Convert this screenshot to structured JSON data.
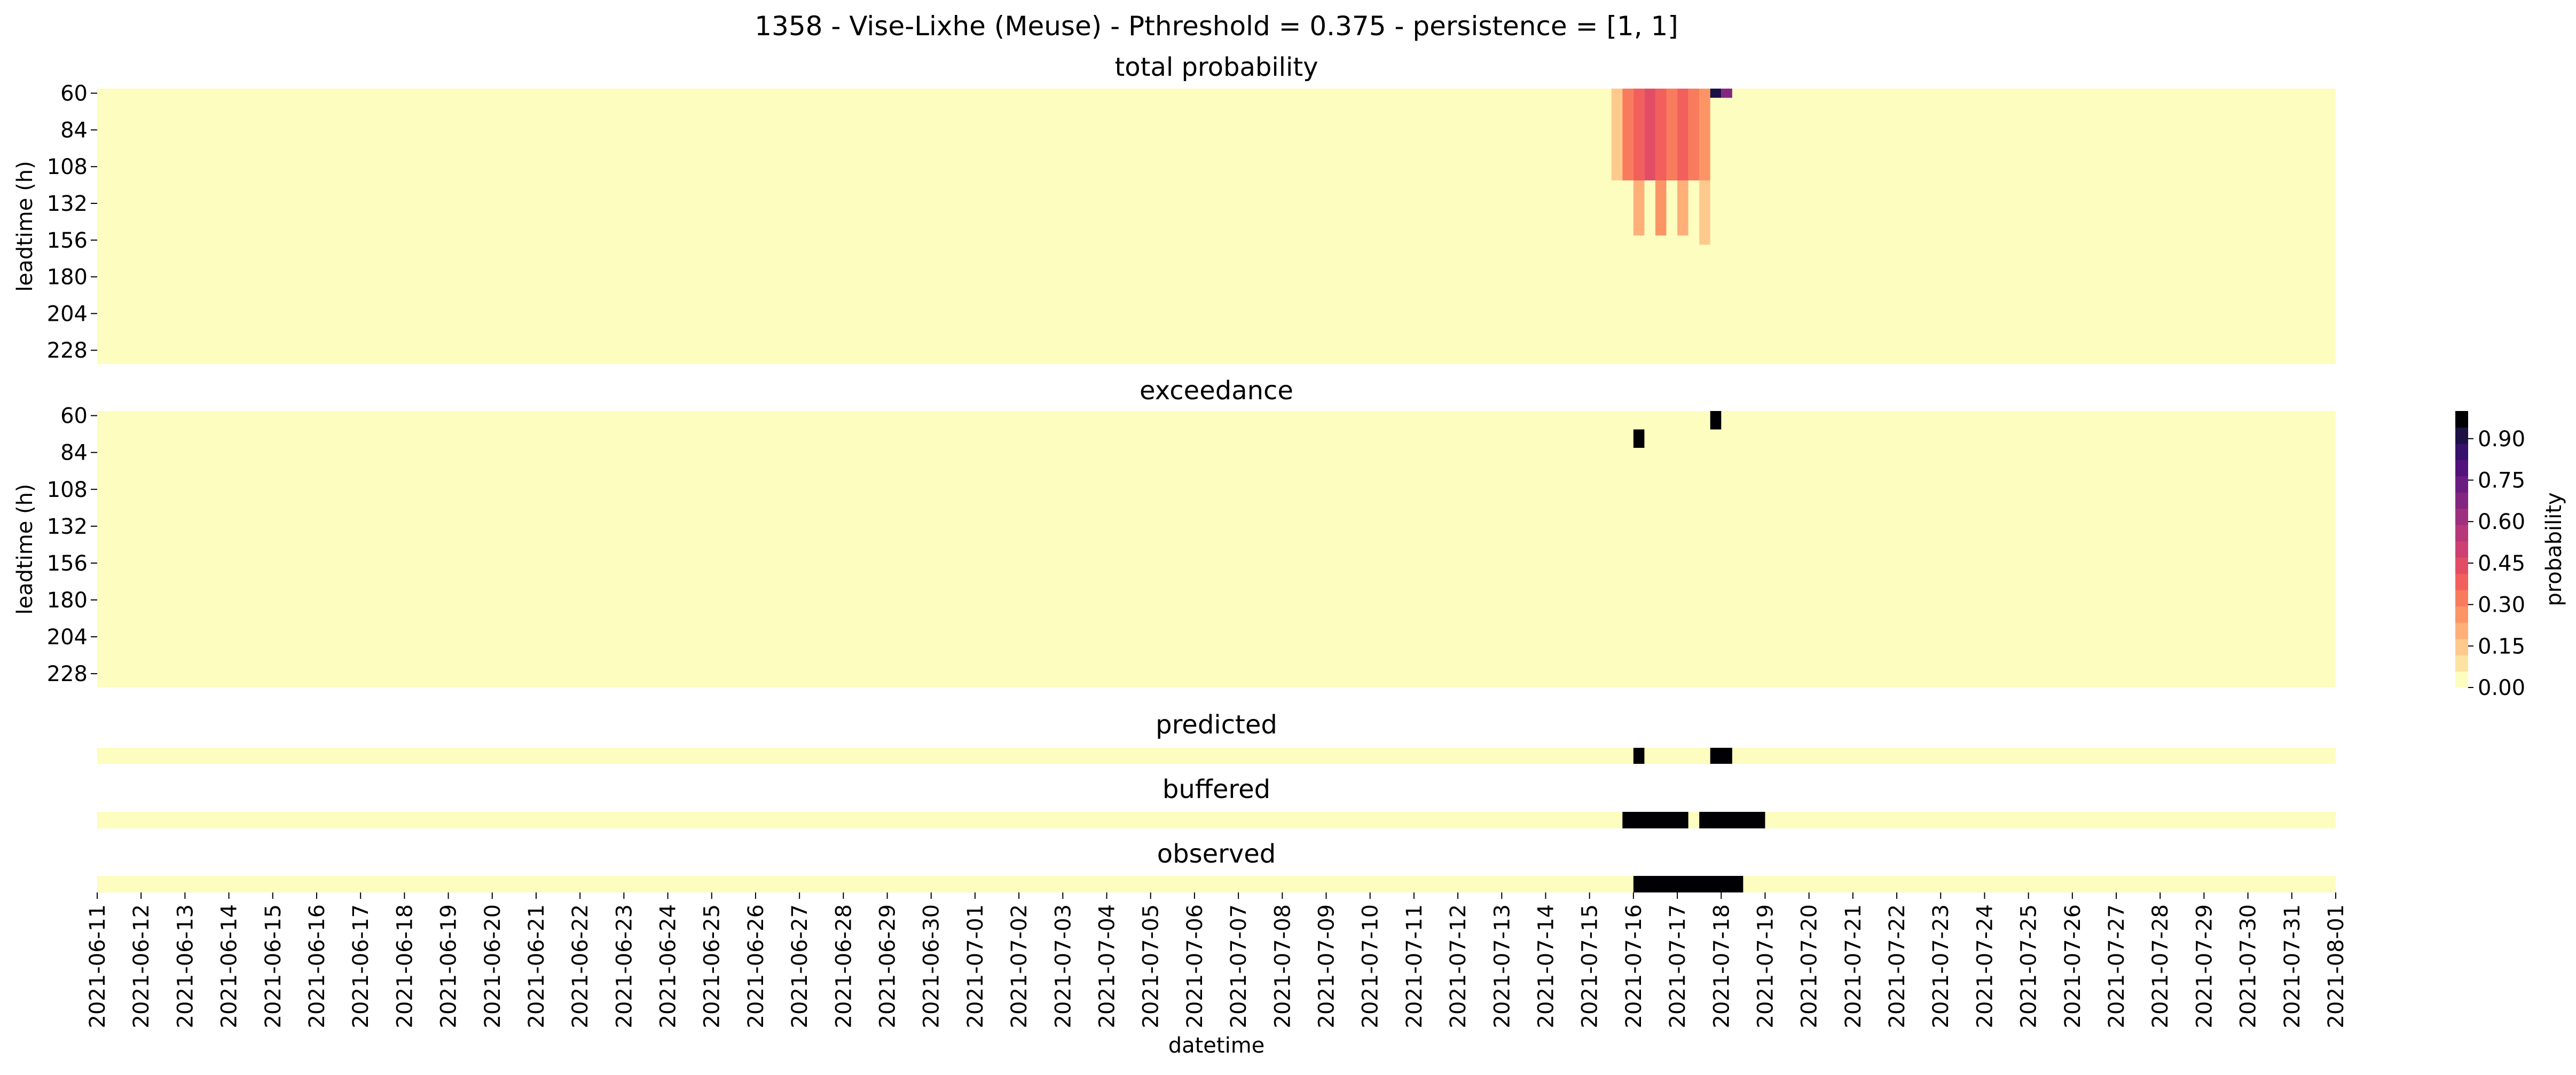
{
  "chart_data": {
    "type": "heatmap",
    "title": "1358 - Vise-Lixhe (Meuse) - Pthreshold = 0.375 - persistence = [1, 1]",
    "xlabel": "datetime",
    "date_start": "2021-06-11",
    "date_end": "2021-08-01",
    "xtick_labels": [
      "2021-06-11",
      "2021-06-12",
      "2021-06-13",
      "2021-06-14",
      "2021-06-15",
      "2021-06-16",
      "2021-06-17",
      "2021-06-18",
      "2021-06-19",
      "2021-06-20",
      "2021-06-21",
      "2021-06-22",
      "2021-06-23",
      "2021-06-24",
      "2021-06-25",
      "2021-06-26",
      "2021-06-27",
      "2021-06-28",
      "2021-06-29",
      "2021-06-30",
      "2021-07-01",
      "2021-07-02",
      "2021-07-03",
      "2021-07-04",
      "2021-07-05",
      "2021-07-06",
      "2021-07-07",
      "2021-07-08",
      "2021-07-09",
      "2021-07-10",
      "2021-07-11",
      "2021-07-12",
      "2021-07-13",
      "2021-07-14",
      "2021-07-15",
      "2021-07-16",
      "2021-07-17",
      "2021-07-18",
      "2021-07-19",
      "2021-07-20",
      "2021-07-21",
      "2021-07-22",
      "2021-07-23",
      "2021-07-24",
      "2021-07-25",
      "2021-07-26",
      "2021-07-27",
      "2021-07-28",
      "2021-07-29",
      "2021-07-30",
      "2021-07-31",
      "2021-08-01"
    ],
    "leadtime_labels": [
      "60",
      "84",
      "108",
      "132",
      "156",
      "180",
      "204",
      "228"
    ],
    "colorbar": {
      "label": "probability",
      "range": [
        0,
        1
      ],
      "ticks": [
        "0.00",
        "0.15",
        "0.30",
        "0.45",
        "0.60",
        "0.75",
        "0.90"
      ],
      "colors": [
        "#fcfdbf",
        "#fde2a1",
        "#fec98d",
        "#feb078",
        "#fc9566",
        "#f97b5d",
        "#f1605d",
        "#e24d66",
        "#cd4071",
        "#b73779",
        "#9e2f7f",
        "#832681",
        "#6a1c81",
        "#51127c",
        "#36106b",
        "#1c1044",
        "#000004"
      ]
    },
    "panels": [
      {
        "title": "total probability",
        "ylabel": "leadtime (h)",
        "leadtime_range_h": [
          60,
          240
        ],
        "cells": [
          {
            "datetime": "2021-07-15T12:00",
            "leadtime_range_h": [
              60,
              120
            ],
            "value": 0.15
          },
          {
            "datetime": "2021-07-15T18:00",
            "leadtime_range_h": [
              60,
              120
            ],
            "value": 0.33
          },
          {
            "datetime": "2021-07-16T00:00",
            "leadtime_range_h": [
              60,
              120
            ],
            "value": 0.38
          },
          {
            "datetime": "2021-07-16T06:00",
            "leadtime_range_h": [
              60,
              120
            ],
            "value": 0.42
          },
          {
            "datetime": "2021-07-16T12:00",
            "leadtime_range_h": [
              60,
              120
            ],
            "value": 0.36
          },
          {
            "datetime": "2021-07-16T18:00",
            "leadtime_range_h": [
              60,
              120
            ],
            "value": 0.3
          },
          {
            "datetime": "2021-07-17T00:00",
            "leadtime_range_h": [
              60,
              120
            ],
            "value": 0.35
          },
          {
            "datetime": "2021-07-17T06:00",
            "leadtime_range_h": [
              60,
              120
            ],
            "value": 0.3
          },
          {
            "datetime": "2021-07-17T12:00",
            "leadtime_range_h": [
              60,
              120
            ],
            "value": 0.25
          },
          {
            "datetime": "2021-07-17T18:00",
            "leadtime_range_h": [
              60,
              66
            ],
            "value": 0.95
          },
          {
            "datetime": "2021-07-18T00:00",
            "leadtime_range_h": [
              60,
              66
            ],
            "value": 0.7
          },
          {
            "datetime": "2021-07-16T00:00",
            "leadtime_range_h": [
              120,
              156
            ],
            "value": 0.2
          },
          {
            "datetime": "2021-07-16T12:00",
            "leadtime_range_h": [
              120,
              156
            ],
            "value": 0.22
          },
          {
            "datetime": "2021-07-17T00:00",
            "leadtime_range_h": [
              120,
              156
            ],
            "value": 0.18
          },
          {
            "datetime": "2021-07-17T12:00",
            "leadtime_range_h": [
              120,
              162
            ],
            "value": 0.1
          }
        ]
      },
      {
        "title": "exceedance",
        "ylabel": "leadtime (h)",
        "leadtime_range_h": [
          60,
          240
        ],
        "cells": [
          {
            "datetime": "2021-07-16T00:00",
            "leadtime_range_h": [
              72,
              84
            ],
            "value": 1
          },
          {
            "datetime": "2021-07-17T18:00",
            "leadtime_range_h": [
              60,
              72
            ],
            "value": 1
          }
        ]
      },
      {
        "title": "predicted",
        "events": [
          {
            "start": "2021-07-16T00:00",
            "end": "2021-07-16T06:00"
          },
          {
            "start": "2021-07-17T18:00",
            "end": "2021-07-18T06:00"
          }
        ]
      },
      {
        "title": "buffered",
        "events": [
          {
            "start": "2021-07-15T18:00",
            "end": "2021-07-17T06:00"
          },
          {
            "start": "2021-07-17T12:00",
            "end": "2021-07-19T00:00"
          }
        ]
      },
      {
        "title": "observed",
        "events": [
          {
            "start": "2021-07-16T00:00",
            "end": "2021-07-18T12:00"
          }
        ]
      }
    ]
  }
}
